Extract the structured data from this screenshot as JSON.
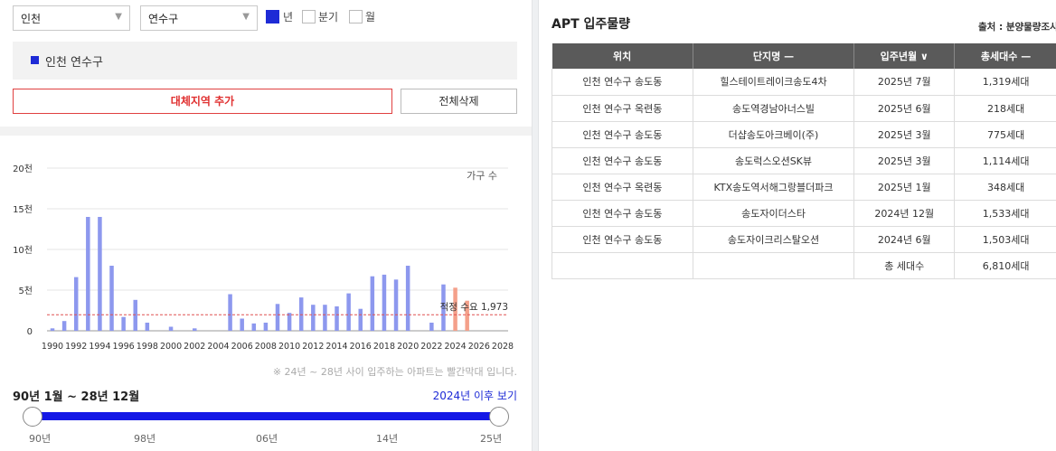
{
  "filters": {
    "city": "인천",
    "district": "연수구",
    "period_options": [
      {
        "label": "년",
        "checked": true
      },
      {
        "label": "분기",
        "checked": false
      },
      {
        "label": "월",
        "checked": false
      }
    ]
  },
  "region_box": {
    "label": "인천 연수구"
  },
  "buttons": {
    "add_region": "대체지역 추가",
    "delete_all": "전체삭제"
  },
  "chart_data": {
    "type": "bar",
    "legend": "가구 수",
    "x_tick_labels": [
      "1990",
      "1992",
      "1994",
      "1996",
      "1998",
      "2000",
      "2002",
      "2004",
      "2006",
      "2008",
      "2010",
      "2012",
      "2014",
      "2016",
      "2018",
      "2020",
      "2022",
      "2024",
      "2026",
      "2028"
    ],
    "y_tick_labels": [
      "0",
      "5천",
      "10천",
      "15천",
      "20천"
    ],
    "ylim": [
      0,
      20000
    ],
    "years": [
      1990,
      1991,
      1992,
      1993,
      1994,
      1995,
      1996,
      1997,
      1998,
      1999,
      2000,
      2001,
      2002,
      2003,
      2004,
      2005,
      2006,
      2007,
      2008,
      2009,
      2010,
      2011,
      2012,
      2013,
      2014,
      2015,
      2016,
      2017,
      2018,
      2019,
      2020,
      2021,
      2022,
      2023,
      2024,
      2025,
      2026,
      2027,
      2028
    ],
    "values": [
      300,
      1200,
      6600,
      14000,
      14000,
      8000,
      1700,
      3800,
      1000,
      0,
      500,
      0,
      300,
      0,
      0,
      4500,
      1500,
      900,
      1000,
      3300,
      2200,
      4100,
      3200,
      3200,
      3000,
      4600,
      2700,
      6700,
      6900,
      6300,
      8000,
      0,
      1000,
      5700,
      5300,
      3700,
      0,
      0,
      0
    ],
    "highlight_from_year": 2024,
    "bar_color": "#8d98ee",
    "highlight_color": "#f4a08a",
    "reference_line": {
      "value": 1973,
      "label": "적정 수요 1,973",
      "color": "#e05050"
    }
  },
  "chart_note": "※ 24년 ~ 28년 사이 입주하는 아파트는 빨간막대 입니다.",
  "range": {
    "title": "90년 1월 ~ 28년 12월",
    "link": "2024년 이후 보기",
    "slider_labels": [
      "90년",
      "98년",
      "06년",
      "14년",
      "25년"
    ],
    "accent": "#1418e6"
  },
  "apt": {
    "title": "APT 입주물량",
    "source": "출처 : 분양물량조사",
    "headers": [
      "위치",
      "단지명 —",
      "입주년월 ∨",
      "총세대수 —"
    ],
    "rows": [
      [
        "인천 연수구 송도동",
        "힐스테이트레이크송도4차",
        "2025년 7월",
        "1,319세대"
      ],
      [
        "인천 연수구 옥련동",
        "송도역경남아너스빌",
        "2025년 6월",
        "218세대"
      ],
      [
        "인천 연수구 송도동",
        "더샵송도아크베이(주)",
        "2025년 3월",
        "775세대"
      ],
      [
        "인천 연수구 송도동",
        "송도럭스오션SK뷰",
        "2025년 3월",
        "1,114세대"
      ],
      [
        "인천 연수구 옥련동",
        "KTX송도역서해그랑블더파크",
        "2025년 1월",
        "348세대"
      ],
      [
        "인천 연수구 송도동",
        "송도자이더스타",
        "2024년 12월",
        "1,533세대"
      ],
      [
        "인천 연수구 송도동",
        "송도자이크리스탈오션",
        "2024년 6월",
        "1,503세대"
      ]
    ],
    "total_label": "총 세대수",
    "total_value": "6,810세대"
  }
}
